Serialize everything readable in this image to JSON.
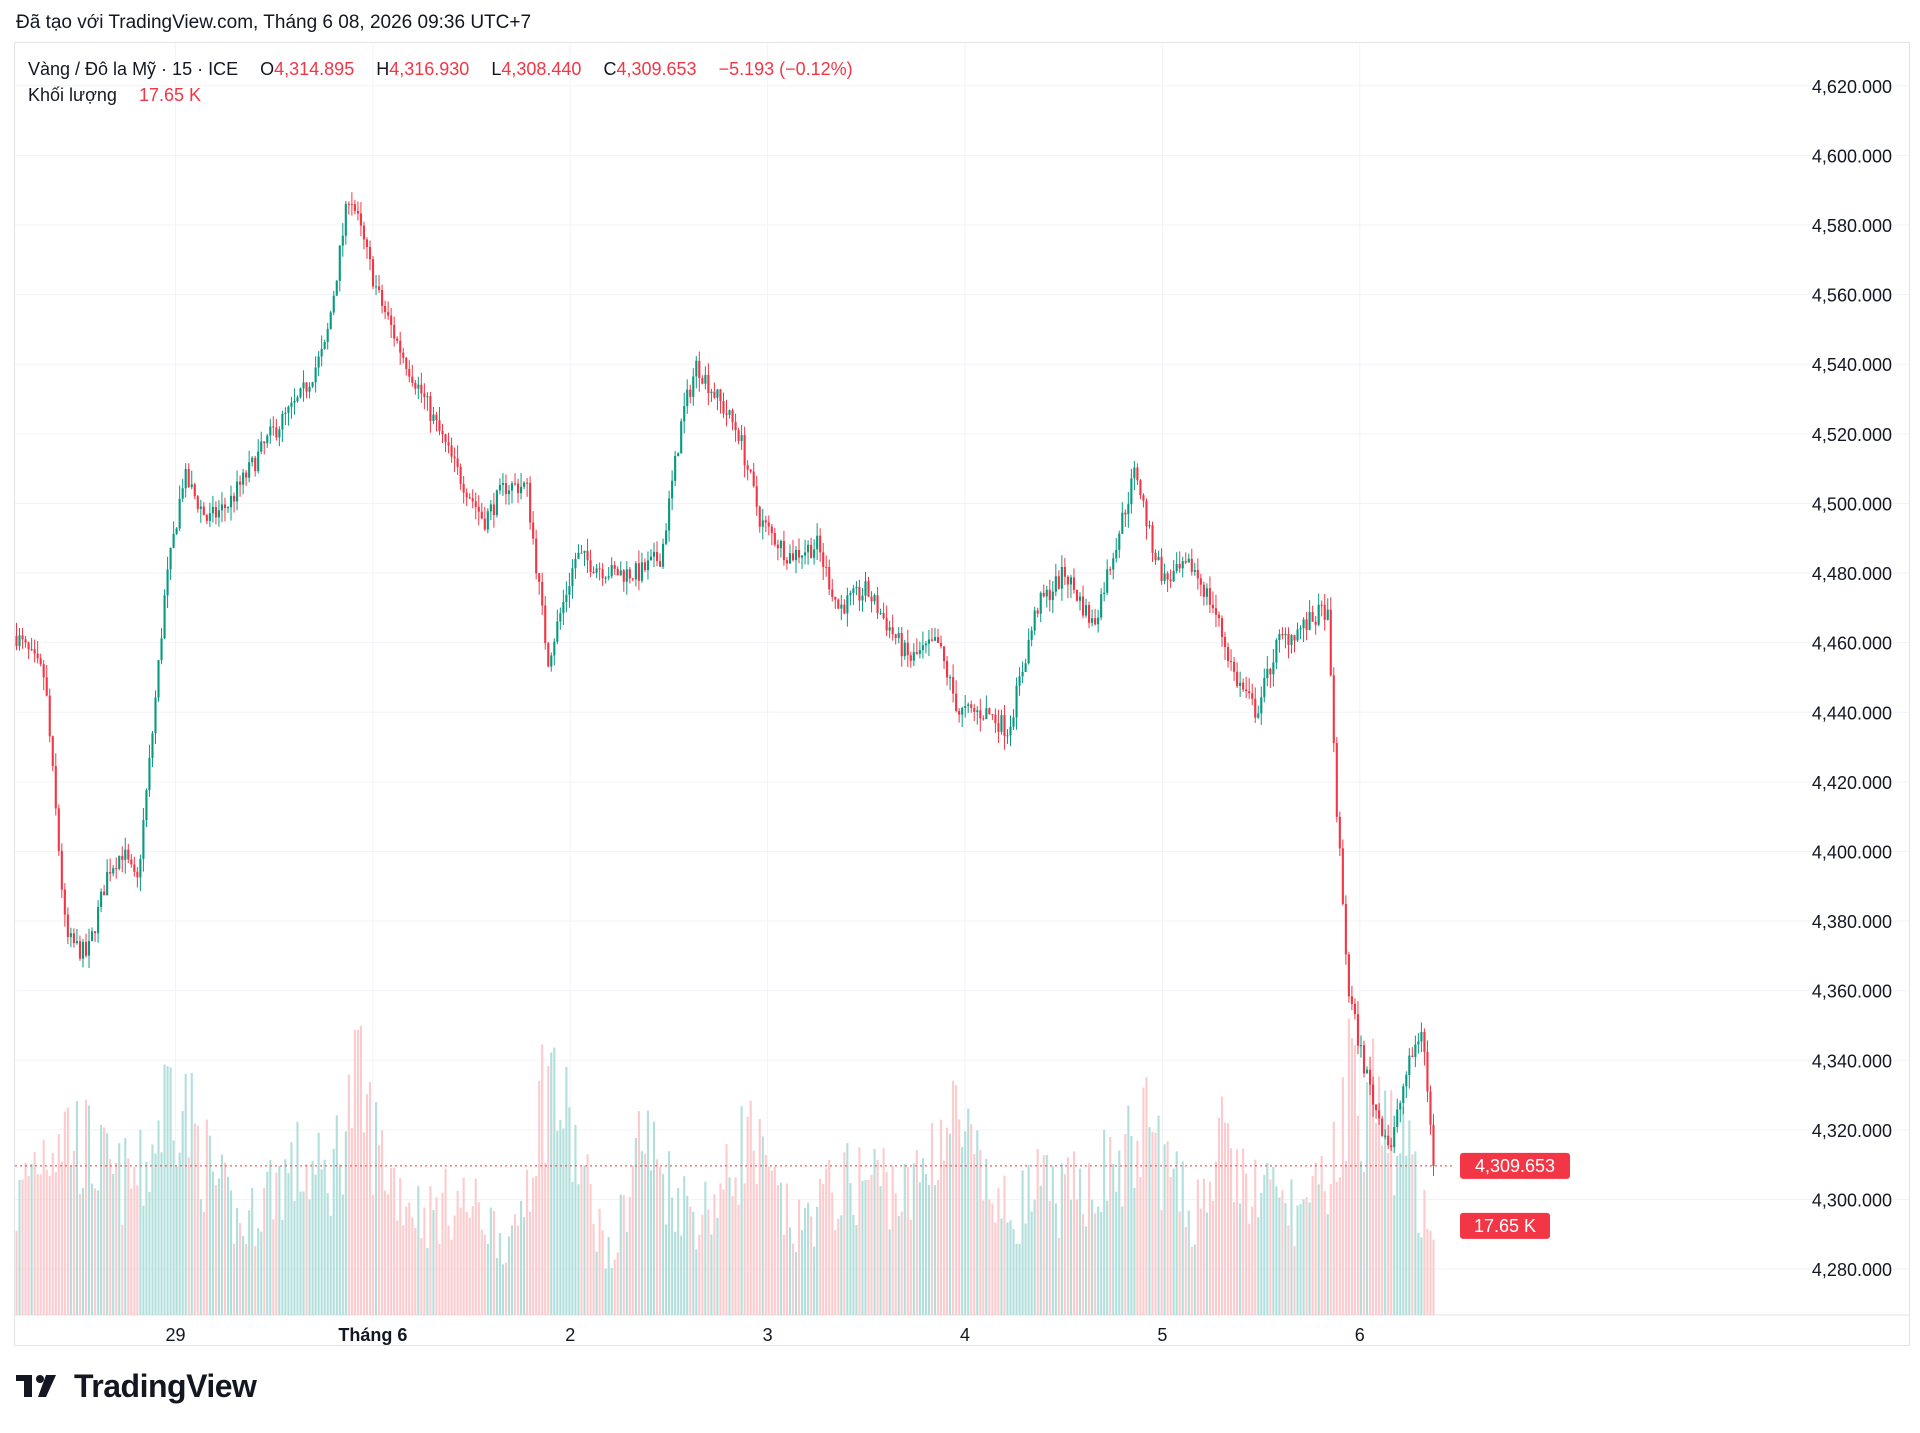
{
  "header": {
    "created_with": "Đã tạo với TradingView.com, Tháng 6 08, 2026 09:36 UTC+7"
  },
  "legend": {
    "symbol": "Vàng / Đô la Mỹ · 15 · ICE",
    "open_label": "O",
    "open": "4,314.895",
    "high_label": "H",
    "high": "4,316.930",
    "low_label": "L",
    "low": "4,308.440",
    "close_label": "C",
    "close": "4,309.653",
    "change": "−5.193 (−0.12%)",
    "volume_label": "Khối lượng",
    "volume": "17.65 K"
  },
  "footer": {
    "brand": "TradingView"
  },
  "colors": {
    "up": "#089981",
    "down": "#f23645",
    "up_vol": "#b2dfdb",
    "down_vol": "#fccbcd",
    "grid": "#f0f3fa",
    "text": "#131722"
  },
  "chart_data": {
    "type": "candlestick",
    "title": "Vàng / Đô la Mỹ · 15 · ICE",
    "xlabel": "",
    "ylabel": "",
    "ylim": [
      4270,
      4630
    ],
    "y_ticks": [
      "4,620.000",
      "4,600.000",
      "4,580.000",
      "4,560.000",
      "4,540.000",
      "4,520.000",
      "4,500.000",
      "4,480.000",
      "4,460.000",
      "4,440.000",
      "4,420.000",
      "4,400.000",
      "4,380.000",
      "4,360.000",
      "4,340.000",
      "4,320.000",
      "4,300.000",
      "4,280.000"
    ],
    "y_tick_values": [
      4620,
      4600,
      4580,
      4560,
      4540,
      4520,
      4500,
      4480,
      4460,
      4440,
      4420,
      4400,
      4380,
      4360,
      4340,
      4320,
      4300,
      4280
    ],
    "x_ticks": [
      {
        "label": "29",
        "t": 0.113,
        "bold": false
      },
      {
        "label": "Tháng 6",
        "t": 0.252,
        "bold": true
      },
      {
        "label": "2",
        "t": 0.391,
        "bold": false
      },
      {
        "label": "3",
        "t": 0.53,
        "bold": false
      },
      {
        "label": "4",
        "t": 0.669,
        "bold": false
      },
      {
        "label": "5",
        "t": 0.808,
        "bold": false
      },
      {
        "label": "6",
        "t": 0.947,
        "bold": false
      }
    ],
    "last_price": 4309.653,
    "last_price_label": "4,309.653",
    "last_volume_label": "17.65 K",
    "price_path": [
      [
        0.0,
        4462
      ],
      [
        0.02,
        4450
      ],
      [
        0.035,
        4375
      ],
      [
        0.05,
        4370
      ],
      [
        0.065,
        4395
      ],
      [
        0.075,
        4400
      ],
      [
        0.085,
        4390
      ],
      [
        0.095,
        4430
      ],
      [
        0.105,
        4475
      ],
      [
        0.118,
        4508
      ],
      [
        0.135,
        4495
      ],
      [
        0.15,
        4500
      ],
      [
        0.165,
        4510
      ],
      [
        0.18,
        4520
      ],
      [
        0.2,
        4530
      ],
      [
        0.218,
        4545
      ],
      [
        0.235,
        4590
      ],
      [
        0.255,
        4560
      ],
      [
        0.27,
        4545
      ],
      [
        0.29,
        4528
      ],
      [
        0.31,
        4510
      ],
      [
        0.33,
        4495
      ],
      [
        0.345,
        4505
      ],
      [
        0.36,
        4505
      ],
      [
        0.375,
        4455
      ],
      [
        0.395,
        4485
      ],
      [
        0.42,
        4480
      ],
      [
        0.44,
        4480
      ],
      [
        0.455,
        4485
      ],
      [
        0.47,
        4525
      ],
      [
        0.48,
        4540
      ],
      [
        0.495,
        4530
      ],
      [
        0.51,
        4520
      ],
      [
        0.525,
        4495
      ],
      [
        0.545,
        4485
      ],
      [
        0.565,
        4488
      ],
      [
        0.58,
        4470
      ],
      [
        0.6,
        4475
      ],
      [
        0.615,
        4465
      ],
      [
        0.63,
        4455
      ],
      [
        0.65,
        4460
      ],
      [
        0.665,
        4440
      ],
      [
        0.685,
        4440
      ],
      [
        0.7,
        4435
      ],
      [
        0.72,
        4470
      ],
      [
        0.74,
        4480
      ],
      [
        0.76,
        4465
      ],
      [
        0.78,
        4495
      ],
      [
        0.79,
        4510
      ],
      [
        0.8,
        4490
      ],
      [
        0.81,
        4478
      ],
      [
        0.83,
        4482
      ],
      [
        0.845,
        4470
      ],
      [
        0.86,
        4450
      ],
      [
        0.875,
        4440
      ],
      [
        0.89,
        4460
      ],
      [
        0.91,
        4465
      ],
      [
        0.925,
        4470
      ],
      [
        0.932,
        4410
      ],
      [
        0.94,
        4360
      ],
      [
        0.95,
        4340
      ],
      [
        0.96,
        4325
      ],
      [
        0.97,
        4315
      ],
      [
        0.98,
        4335
      ],
      [
        0.992,
        4350
      ],
      [
        1.0,
        4309.653
      ]
    ],
    "volume_ylim": [
      0,
      100000
    ],
    "volume_path": [
      [
        0.0,
        32000
      ],
      [
        0.01,
        45000
      ],
      [
        0.03,
        58000
      ],
      [
        0.05,
        50000
      ],
      [
        0.07,
        40000
      ],
      [
        0.09,
        42000
      ],
      [
        0.11,
        72000
      ],
      [
        0.125,
        55000
      ],
      [
        0.14,
        40000
      ],
      [
        0.16,
        25000
      ],
      [
        0.18,
        40000
      ],
      [
        0.2,
        45000
      ],
      [
        0.22,
        40000
      ],
      [
        0.24,
        70000
      ],
      [
        0.255,
        50000
      ],
      [
        0.27,
        38000
      ],
      [
        0.29,
        30000
      ],
      [
        0.31,
        35000
      ],
      [
        0.33,
        30000
      ],
      [
        0.35,
        20000
      ],
      [
        0.375,
        75000
      ],
      [
        0.39,
        55000
      ],
      [
        0.405,
        35000
      ],
      [
        0.42,
        15000
      ],
      [
        0.44,
        55000
      ],
      [
        0.46,
        40000
      ],
      [
        0.48,
        30000
      ],
      [
        0.5,
        38000
      ],
      [
        0.515,
        55000
      ],
      [
        0.53,
        40000
      ],
      [
        0.55,
        25000
      ],
      [
        0.57,
        35000
      ],
      [
        0.59,
        40000
      ],
      [
        0.61,
        42000
      ],
      [
        0.63,
        35000
      ],
      [
        0.65,
        55000
      ],
      [
        0.665,
        58000
      ],
      [
        0.68,
        40000
      ],
      [
        0.7,
        30000
      ],
      [
        0.72,
        38000
      ],
      [
        0.74,
        35000
      ],
      [
        0.76,
        42000
      ],
      [
        0.78,
        45000
      ],
      [
        0.8,
        58000
      ],
      [
        0.815,
        40000
      ],
      [
        0.83,
        30000
      ],
      [
        0.85,
        50000
      ],
      [
        0.87,
        38000
      ],
      [
        0.89,
        35000
      ],
      [
        0.91,
        30000
      ],
      [
        0.925,
        40000
      ],
      [
        0.94,
        70000
      ],
      [
        0.955,
        65000
      ],
      [
        0.97,
        55000
      ],
      [
        0.985,
        45000
      ],
      [
        1.0,
        17650
      ]
    ]
  }
}
